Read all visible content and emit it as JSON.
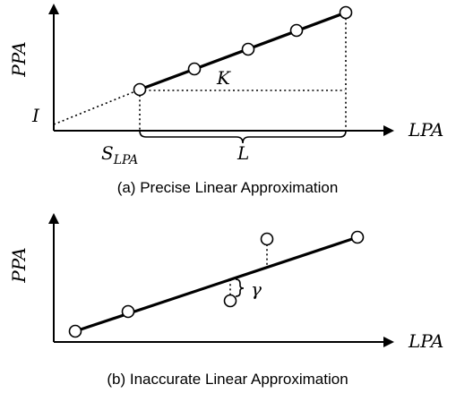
{
  "top": {
    "y_axis_label": "PPA",
    "x_axis_label": "LPA",
    "intercept_label": "I",
    "slope_label": "K",
    "start_label_main": "S",
    "start_label_sub": "LPA",
    "length_label": "L",
    "caption": "(a) Precise Linear Approximation"
  },
  "bottom": {
    "y_axis_label": "PPA",
    "x_axis_label": "LPA",
    "error_label": "γ",
    "caption": "(b) Inaccurate Linear Approximation"
  }
}
